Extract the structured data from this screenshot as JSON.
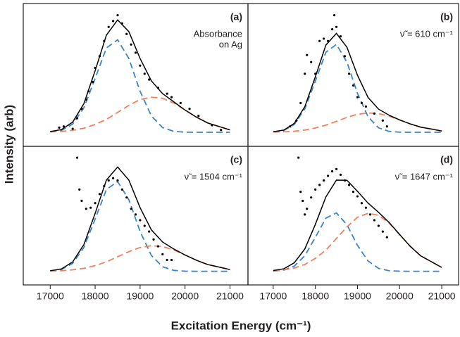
{
  "ylabel": "Intensity (arb)",
  "xlabel": "Excitation Energy (cm⁻¹)",
  "chart_data": [
    {
      "type": "line",
      "label": "(a)",
      "annotation": [
        "Absorbance",
        "on Ag"
      ],
      "xlim": [
        16400,
        21400
      ],
      "ylim": [
        -0.12,
        1.1
      ],
      "x": [
        17000,
        17250,
        17500,
        17750,
        18000,
        18250,
        18500,
        18750,
        19000,
        19250,
        19500,
        19750,
        20000,
        20250,
        20500,
        20750,
        21000
      ],
      "series": [
        {
          "type": "line",
          "style": "dashed",
          "color": "#3a86c8",
          "values": [
            0.003,
            0.016,
            0.07,
            0.21,
            0.46,
            0.72,
            0.79,
            0.63,
            0.35,
            0.14,
            0.04,
            0.008,
            0.001,
            0,
            0,
            0,
            0
          ]
        },
        {
          "type": "line",
          "style": "dashed",
          "color": "#f0805a",
          "values": [
            0.003,
            0.007,
            0.017,
            0.035,
            0.067,
            0.11,
            0.17,
            0.23,
            0.28,
            0.3,
            0.29,
            0.25,
            0.19,
            0.13,
            0.08,
            0.05,
            0.02
          ]
        },
        {
          "type": "line",
          "style": "solid",
          "color": "#000000",
          "values": [
            0.006,
            0.023,
            0.087,
            0.245,
            0.527,
            0.83,
            0.96,
            0.86,
            0.63,
            0.44,
            0.33,
            0.26,
            0.19,
            0.13,
            0.08,
            0.05,
            0.02
          ]
        },
        {
          "type": "scatter",
          "color": "#000000",
          "x": [
            17200,
            17300,
            17500,
            17600,
            17700,
            17800,
            17850,
            17950,
            18000,
            18100,
            18200,
            18300,
            18400,
            18500,
            18600,
            18700,
            18800,
            18900,
            19000,
            19100,
            19200,
            19400,
            19600,
            19700,
            19900,
            20100,
            20300,
            20600,
            20800
          ],
          "values": [
            0.04,
            0.05,
            0.03,
            0.12,
            0.2,
            0.28,
            0.35,
            0.43,
            0.55,
            0.65,
            0.78,
            0.9,
            0.95,
            1.0,
            0.93,
            0.84,
            0.75,
            0.68,
            0.57,
            0.5,
            0.45,
            0.38,
            0.33,
            0.3,
            0.25,
            0.2,
            0.14,
            0.06,
            0.02
          ]
        }
      ]
    },
    {
      "type": "line",
      "label": "(b)",
      "annotation": [
        "ν̃ = 610 cm⁻¹"
      ],
      "xlim": [
        16400,
        21400
      ],
      "ylim": [
        -0.12,
        1.1
      ],
      "x": [
        17000,
        17250,
        17500,
        17750,
        18000,
        18250,
        18500,
        18750,
        19000,
        19250,
        19500,
        19750,
        20000,
        20250,
        20500,
        20750,
        21000
      ],
      "series": [
        {
          "type": "line",
          "style": "dashed",
          "color": "#3a86c8",
          "values": [
            0.003,
            0.015,
            0.067,
            0.2,
            0.437,
            0.684,
            0.751,
            0.599,
            0.333,
            0.133,
            0.038,
            0.008,
            0.001,
            0,
            0,
            0,
            0
          ]
        },
        {
          "type": "line",
          "style": "dashed",
          "color": "#f0805a",
          "values": [
            0.002,
            0.004,
            0.009,
            0.019,
            0.037,
            0.061,
            0.094,
            0.127,
            0.154,
            0.165,
            0.16,
            0.138,
            0.105,
            0.072,
            0.044,
            0.028,
            0.011
          ]
        },
        {
          "type": "line",
          "style": "solid",
          "color": "#000000",
          "values": [
            0.005,
            0.019,
            0.076,
            0.219,
            0.474,
            0.745,
            0.845,
            0.726,
            0.487,
            0.298,
            0.198,
            0.146,
            0.106,
            0.072,
            0.044,
            0.028,
            0.011
          ]
        },
        {
          "type": "scatter",
          "color": "#000000",
          "x": [
            17400,
            17550,
            17650,
            17750,
            17800,
            17900,
            18000,
            18100,
            18200,
            18300,
            18400,
            18450,
            18500,
            18600,
            18700,
            18800,
            18900,
            19000,
            19100,
            19200,
            19400,
            19600,
            19700
          ],
          "values": [
            0.05,
            0.1,
            0.25,
            0.5,
            0.66,
            0.6,
            0.5,
            0.78,
            0.8,
            0.78,
            0.88,
            1.0,
            0.9,
            0.82,
            0.65,
            0.5,
            0.4,
            0.3,
            0.25,
            0.22,
            0.16,
            0.1,
            0.05
          ]
        }
      ]
    },
    {
      "type": "line",
      "label": "(c)",
      "annotation": [
        "ν̃ = 1504 cm⁻¹"
      ],
      "xlim": [
        16400,
        21400
      ],
      "ylim": [
        -0.12,
        1.1
      ],
      "xticks": [
        17000,
        18000,
        19000,
        20000,
        21000
      ],
      "x": [
        17000,
        17250,
        17500,
        17750,
        18000,
        18250,
        18500,
        18750,
        19000,
        19250,
        19500,
        19750,
        20000,
        20250,
        20500,
        20750,
        21000
      ],
      "series": [
        {
          "type": "line",
          "style": "dashed",
          "color": "#3a86c8",
          "values": [
            0.003,
            0.016,
            0.07,
            0.21,
            0.46,
            0.72,
            0.79,
            0.63,
            0.35,
            0.14,
            0.04,
            0.008,
            0.001,
            0,
            0,
            0,
            0
          ]
        },
        {
          "type": "line",
          "style": "dashed",
          "color": "#f0805a",
          "values": [
            0.002,
            0.005,
            0.013,
            0.026,
            0.05,
            0.083,
            0.128,
            0.173,
            0.21,
            0.225,
            0.218,
            0.188,
            0.143,
            0.098,
            0.06,
            0.038,
            0.015
          ]
        },
        {
          "type": "line",
          "style": "solid",
          "color": "#000000",
          "values": [
            0.005,
            0.021,
            0.083,
            0.236,
            0.51,
            0.803,
            0.918,
            0.803,
            0.56,
            0.365,
            0.258,
            0.196,
            0.144,
            0.098,
            0.06,
            0.038,
            0.015
          ]
        },
        {
          "type": "scatter",
          "color": "#000000",
          "x": [
            17600,
            17650,
            17700,
            17800,
            17900,
            18000,
            18100,
            18200,
            18300,
            18400,
            18500,
            18600,
            18700,
            18800,
            18900,
            19000,
            19100,
            19200,
            19300,
            19400,
            19500,
            19600,
            19700
          ],
          "values": [
            1.0,
            0.72,
            0.62,
            0.55,
            0.56,
            0.6,
            0.68,
            0.75,
            0.8,
            0.82,
            0.8,
            0.72,
            0.65,
            0.55,
            0.5,
            0.45,
            0.4,
            0.35,
            0.28,
            0.22,
            0.15,
            0.1,
            0.1
          ]
        }
      ]
    },
    {
      "type": "line",
      "label": "(d)",
      "annotation": [
        "ν̃ = 1647 cm⁻¹"
      ],
      "xlim": [
        16400,
        21400
      ],
      "ylim": [
        -0.12,
        1.1
      ],
      "xticks": [
        17000,
        18000,
        19000,
        20000,
        21000
      ],
      "x": [
        17000,
        17250,
        17500,
        17750,
        18000,
        18250,
        18500,
        18750,
        19000,
        19250,
        19500,
        19750,
        20000,
        20250,
        20500,
        20750,
        21000
      ],
      "series": [
        {
          "type": "line",
          "style": "dashed",
          "color": "#3a86c8",
          "values": [
            0.002,
            0.01,
            0.046,
            0.137,
            0.299,
            0.468,
            0.514,
            0.41,
            0.228,
            0.091,
            0.026,
            0.005,
            0.001,
            0,
            0,
            0,
            0
          ]
        },
        {
          "type": "line",
          "style": "dashed",
          "color": "#f0805a",
          "values": [
            0.005,
            0.012,
            0.029,
            0.06,
            0.114,
            0.187,
            0.289,
            0.391,
            0.476,
            0.51,
            0.493,
            0.425,
            0.323,
            0.221,
            0.136,
            0.085,
            0.034
          ]
        },
        {
          "type": "line",
          "style": "solid",
          "color": "#000000",
          "values": [
            0.007,
            0.022,
            0.075,
            0.197,
            0.413,
            0.655,
            0.803,
            0.801,
            0.704,
            0.601,
            0.519,
            0.43,
            0.324,
            0.221,
            0.136,
            0.085,
            0.034
          ]
        },
        {
          "type": "scatter",
          "color": "#000000",
          "x": [
            17600,
            17650,
            17700,
            17750,
            17800,
            17900,
            18000,
            18100,
            18200,
            18300,
            18400,
            18500,
            18600,
            18700,
            18800,
            18900,
            19000,
            19100,
            19200,
            19300,
            19400,
            19500,
            19600,
            19700
          ],
          "values": [
            1.0,
            0.7,
            0.62,
            0.5,
            0.55,
            0.65,
            0.72,
            0.76,
            0.8,
            0.84,
            0.88,
            0.9,
            0.85,
            0.8,
            0.76,
            0.7,
            0.66,
            0.6,
            0.56,
            0.5,
            0.45,
            0.4,
            0.35,
            0.3
          ]
        }
      ]
    }
  ]
}
